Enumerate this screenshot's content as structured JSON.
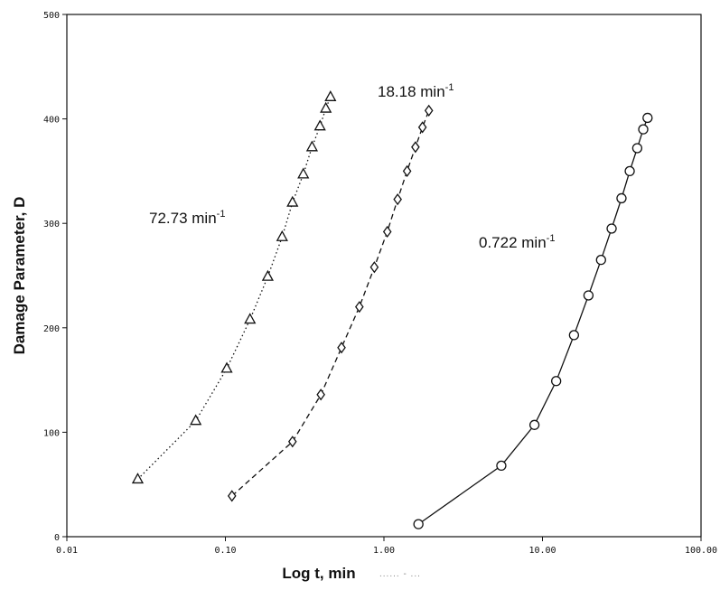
{
  "chart_data": {
    "type": "line",
    "title": "",
    "xlabel": "Log t, min",
    "ylabel": "Damage Parameter, D",
    "xscale": "log",
    "xlim": [
      0.01,
      100
    ],
    "ylim": [
      0,
      500
    ],
    "x_ticks": [
      0.01,
      0.1,
      1,
      10,
      100
    ],
    "x_tick_labels": [
      "0.01",
      "0.10",
      "1.00",
      "10.00",
      "100.00"
    ],
    "y_ticks": [
      0,
      100,
      200,
      300,
      400,
      500
    ],
    "y_tick_labels": [
      "0",
      "100",
      "200",
      "300",
      "400",
      "500"
    ],
    "grid": false,
    "footnote": "...... - ...",
    "series": [
      {
        "name": "72.73 min",
        "name_sup": "-1",
        "marker": "triangle",
        "linestyle": "dotted",
        "x": [
          0.028,
          0.065,
          0.102,
          0.143,
          0.185,
          0.228,
          0.265,
          0.31,
          0.352,
          0.395,
          0.43,
          0.46
        ],
        "y": [
          55,
          111,
          161,
          208,
          249,
          287,
          320,
          347,
          373,
          393,
          410,
          421
        ]
      },
      {
        "name": "18.18 min",
        "name_sup": "-1",
        "marker": "diamond",
        "linestyle": "dashed",
        "x": [
          0.11,
          0.265,
          0.4,
          0.54,
          0.7,
          0.87,
          1.05,
          1.22,
          1.4,
          1.58,
          1.75,
          1.92
        ],
        "y": [
          39,
          91,
          136,
          181,
          220,
          258,
          292,
          323,
          350,
          373,
          392,
          408
        ]
      },
      {
        "name": "0.722 min",
        "name_sup": "-1",
        "marker": "circle",
        "linestyle": "solid",
        "x": [
          1.65,
          5.5,
          8.9,
          12.2,
          15.8,
          19.5,
          23.4,
          27.3,
          31.5,
          35.5,
          39.6,
          43.2,
          46.0
        ],
        "y": [
          12,
          68,
          107,
          149,
          193,
          231,
          265,
          295,
          324,
          350,
          372,
          390,
          401
        ]
      }
    ]
  }
}
